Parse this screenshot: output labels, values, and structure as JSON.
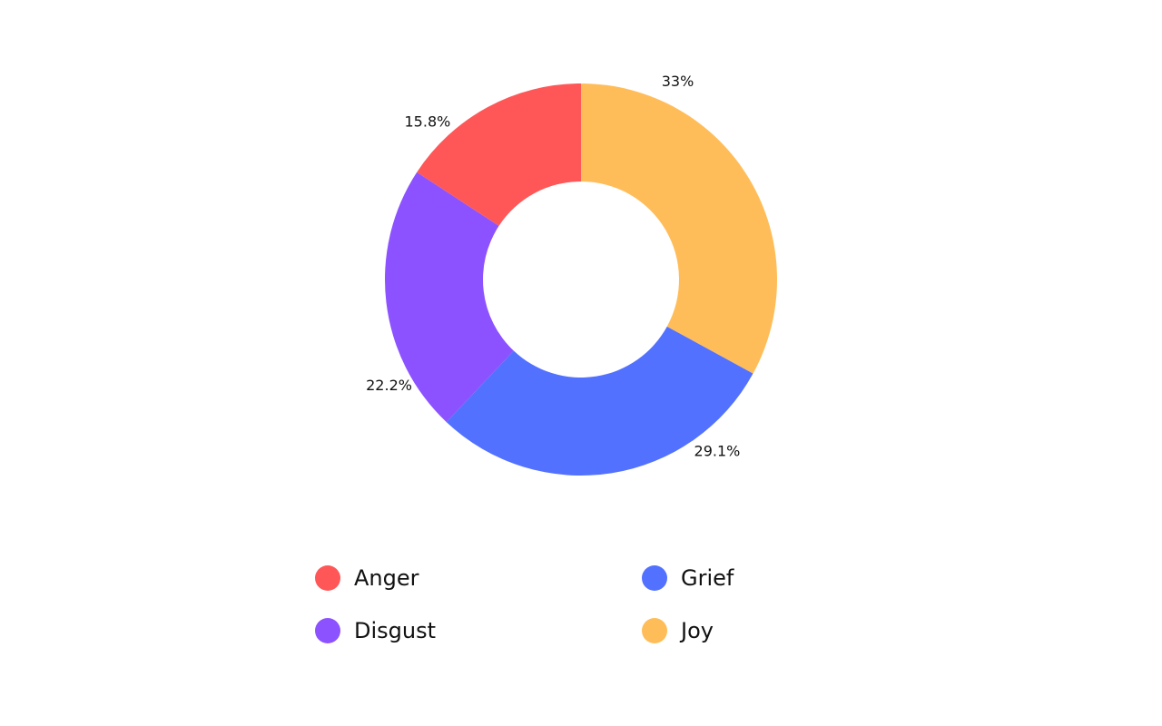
{
  "chart_data": {
    "type": "pie",
    "donut": true,
    "title": "",
    "categories": [
      "Anger",
      "Disgust",
      "Grief",
      "Joy"
    ],
    "values": [
      15.8,
      22.2,
      29.1,
      33.0
    ],
    "labels": [
      "15.8%",
      "22.2%",
      "29.1%",
      "33%"
    ],
    "colors": [
      "#ff5757",
      "#8c52ff",
      "#5271ff",
      "#ffbd59"
    ],
    "legend": {
      "position": "bottom",
      "items": [
        {
          "name": "Anger",
          "color": "#ff5757"
        },
        {
          "name": "Grief",
          "color": "#5271ff"
        },
        {
          "name": "Disgust",
          "color": "#8c52ff"
        },
        {
          "name": "Joy",
          "color": "#ffbd59"
        }
      ]
    }
  }
}
